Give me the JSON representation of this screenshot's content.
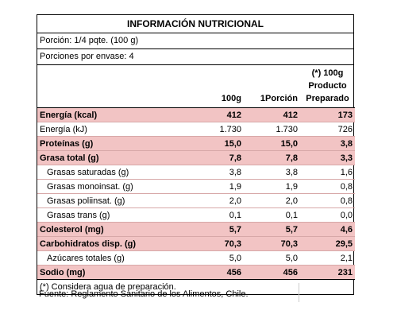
{
  "title": "INFORMACIÓN NUTRICIONAL",
  "portion": "Porción: 1/4 pqte. (100 g)",
  "servings": "Porciones por envase: 4",
  "headers": {
    "col1": "100g",
    "col2": "1Porción",
    "col3_line1": "(*) 100g",
    "col3_line2": "Producto",
    "col3_line3": "Preparado"
  },
  "rows": [
    {
      "label": "Energía (kcal)",
      "v1": "412",
      "v2": "412",
      "v3": "173",
      "bold": true
    },
    {
      "label": "Energía (kJ)",
      "v1": "1.730",
      "v2": "1.730",
      "v3": "726",
      "bold": false
    },
    {
      "label": "Proteínas (g)",
      "v1": "15,0",
      "v2": "15,0",
      "v3": "3,8",
      "bold": true
    },
    {
      "label": "Grasa total (g)",
      "v1": "7,8",
      "v2": "7,8",
      "v3": "3,3",
      "bold": true
    },
    {
      "label": "Grasas saturadas (g)",
      "v1": "3,8",
      "v2": "3,8",
      "v3": "1,6",
      "bold": false
    },
    {
      "label": "Grasas monoinsat. (g)",
      "v1": "1,9",
      "v2": "1,9",
      "v3": "0,8",
      "bold": false
    },
    {
      "label": "Grasas poliinsat. (g)",
      "v1": "2,0",
      "v2": "2,0",
      "v3": "0,8",
      "bold": false
    },
    {
      "label": "Grasas trans (g)",
      "v1": "0,1",
      "v2": "0,1",
      "v3": "0,0",
      "bold": false
    },
    {
      "label": "Colesterol (mg)",
      "v1": "5,7",
      "v2": "5,7",
      "v3": "4,6",
      "bold": true
    },
    {
      "label": "Carbohidratos disp. (g)",
      "v1": "70,3",
      "v2": "70,3",
      "v3": "29,5",
      "bold": true
    },
    {
      "label": "Azúcares totales (g)",
      "v1": "5,0",
      "v2": "5,0",
      "v3": "2,1",
      "bold": false
    },
    {
      "label": "Sodio (mg)",
      "v1": "456",
      "v2": "456",
      "v3": "231",
      "bold": true
    }
  ],
  "footnote": "(*) Considera agua de preparación.",
  "source": "Fuente: Reglamento Sanitario de los Alimentos, Chile."
}
